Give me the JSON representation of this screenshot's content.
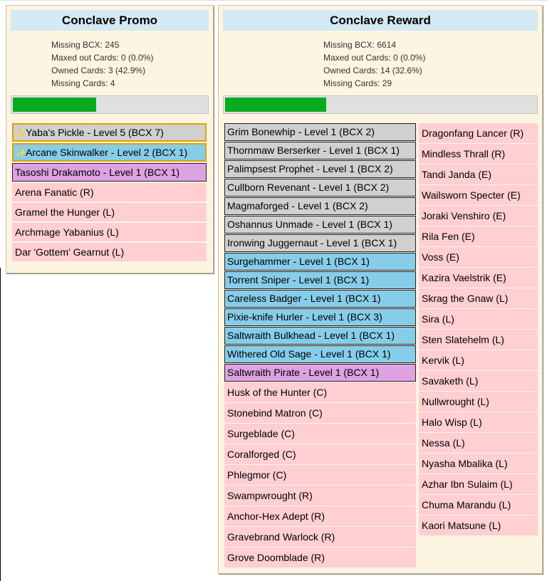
{
  "promo": {
    "title": "Conclave Promo",
    "stats": [
      "Missing BCX: 245",
      "Maxed out Cards: 0 (0.0%)",
      "Owned Cards: 3 (42.9%)",
      "Missing Cards: 4"
    ],
    "progress": 0.429,
    "cards": [
      {
        "label": "Yaba's Pickle - Level 5 (BCX 7)",
        "style": "gold-grey",
        "starred": true
      },
      {
        "label": "Arcane Skinwalker - Level 2 (BCX 1)",
        "style": "gold-blue",
        "starred": true
      },
      {
        "label": "Tasoshi Drakamoto - Level 1 (BCX 1)",
        "style": "purple"
      },
      {
        "label": "Arena Fanatic (R)",
        "style": "missing"
      },
      {
        "label": "Gramel the Hunger (L)",
        "style": "missing"
      },
      {
        "label": "Archmage Yabanius (L)",
        "style": "missing"
      },
      {
        "label": "Dar 'Gottem' Gearnut (L)",
        "style": "missing"
      }
    ]
  },
  "reward": {
    "title": "Conclave Reward",
    "stats": [
      "Missing BCX: 6614",
      "Maxed out Cards: 0 (0.0%)",
      "Owned Cards: 14 (32.6%)",
      "Missing Cards: 29"
    ],
    "progress": 0.326,
    "column_a": [
      {
        "label": "Grim Bonewhip - Level 1 (BCX 2)",
        "style": "grey"
      },
      {
        "label": "Thornmaw Berserker - Level 1 (BCX 1)",
        "style": "grey"
      },
      {
        "label": "Palimpsest Prophet - Level 1 (BCX 2)",
        "style": "grey"
      },
      {
        "label": "Cullborn Revenant - Level 1 (BCX 2)",
        "style": "grey"
      },
      {
        "label": "Magmaforged - Level 1 (BCX 2)",
        "style": "grey"
      },
      {
        "label": "Oshannus Unmade - Level 1 (BCX 1)",
        "style": "grey"
      },
      {
        "label": "Ironwing Juggernaut - Level 1 (BCX 1)",
        "style": "grey"
      },
      {
        "label": "Surgehammer - Level 1 (BCX 1)",
        "style": "blue"
      },
      {
        "label": "Torrent Sniper - Level 1 (BCX 1)",
        "style": "blue"
      },
      {
        "label": "Careless Badger - Level 1 (BCX 1)",
        "style": "blue"
      },
      {
        "label": "Pixie-knife Hurler - Level 1 (BCX 3)",
        "style": "blue"
      },
      {
        "label": "Saltwraith Bulkhead - Level 1 (BCX 1)",
        "style": "blue"
      },
      {
        "label": "Withered Old Sage - Level 1 (BCX 1)",
        "style": "blue"
      },
      {
        "label": "Saltwraith Pirate - Level 1 (BCX 1)",
        "style": "purple"
      },
      {
        "label": "Husk of the Hunter (C)",
        "style": "missing"
      },
      {
        "label": "Stonebind Matron (C)",
        "style": "missing"
      },
      {
        "label": "Surgeblade (C)",
        "style": "missing"
      },
      {
        "label": "Coralforged (C)",
        "style": "missing"
      },
      {
        "label": "Phlegmor (C)",
        "style": "missing"
      },
      {
        "label": "Swampwrought (R)",
        "style": "missing"
      },
      {
        "label": "Anchor-Hex Adept (R)",
        "style": "missing"
      },
      {
        "label": "Gravebrand Warlock (R)",
        "style": "missing"
      },
      {
        "label": "Grove Doomblade (R)",
        "style": "missing"
      }
    ],
    "column_b": [
      {
        "label": "Dragonfang Lancer (R)",
        "style": "missing"
      },
      {
        "label": "Mindless Thrall (R)",
        "style": "missing"
      },
      {
        "label": "Tandi Janda (E)",
        "style": "missing"
      },
      {
        "label": "Wailsworn Specter (E)",
        "style": "missing"
      },
      {
        "label": "Joraki Venshiro (E)",
        "style": "missing"
      },
      {
        "label": "Rila Fen (E)",
        "style": "missing"
      },
      {
        "label": "Voss (E)",
        "style": "missing"
      },
      {
        "label": "Kazira Vaelstrik (E)",
        "style": "missing"
      },
      {
        "label": "Skrag the Gnaw (L)",
        "style": "missing"
      },
      {
        "label": "Sira (L)",
        "style": "missing"
      },
      {
        "label": "Sten Slatehelm (L)",
        "style": "missing"
      },
      {
        "label": "Kervik (L)",
        "style": "missing"
      },
      {
        "label": "Savaketh (L)",
        "style": "missing"
      },
      {
        "label": "Nullwrought (L)",
        "style": "missing"
      },
      {
        "label": "Halo Wisp (L)",
        "style": "missing"
      },
      {
        "label": "Nessa (L)",
        "style": "missing"
      },
      {
        "label": "Nyasha Mbalika (L)",
        "style": "missing"
      },
      {
        "label": "Azhar Ibn Sulaim (L)",
        "style": "missing"
      },
      {
        "label": "Chuma Marandu (L)",
        "style": "missing"
      },
      {
        "label": "Kaori Matsune (L)",
        "style": "missing"
      }
    ]
  },
  "icons": {
    "owned_foil": "sparkle-icon"
  },
  "colors": {
    "title_bg": "#d3e9f4",
    "panel_bg": "#fdf4e1",
    "progress_fill": "#0aaa1f",
    "missing": "#ffcfd2",
    "grey": "#d0d0d0",
    "blue": "#87cdea",
    "purple": "#dea1e2",
    "gold": "#e0a000"
  }
}
